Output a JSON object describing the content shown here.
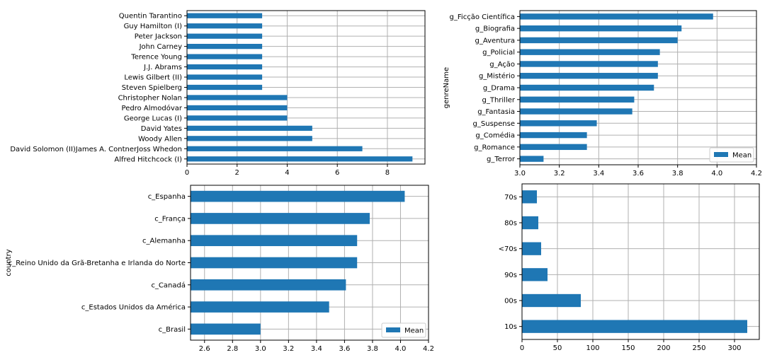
{
  "colors": {
    "bar": "#1f77b4",
    "grid": "#b0b0b0",
    "axis": "#000000",
    "legend_border": "#cccccc"
  },
  "chart_data": [
    {
      "type": "bar",
      "orientation": "horizontal",
      "categories": [
        "Alfred Hitchcock (I)",
        "David Solomon (II)James A. ContnerJoss Whedon",
        "Woody Allen",
        "David Yates",
        "George Lucas (I)",
        "Pedro Almodóvar",
        "Christopher Nolan",
        "Steven Spielberg",
        "Lewis Gilbert (II)",
        "J.J. Abrams",
        "Terence Young",
        "John Carney",
        "Peter Jackson",
        "Guy Hamilton (I)",
        "Quentin Tarantino"
      ],
      "values": [
        9,
        7,
        5,
        5,
        4,
        4,
        4,
        3,
        3,
        3,
        3,
        3,
        3,
        3,
        3
      ],
      "xlim": [
        0,
        9.5
      ],
      "xticks": [
        0,
        2,
        4,
        6,
        8
      ],
      "xtick_labels": [
        "0",
        "2",
        "4",
        "6",
        "8"
      ],
      "ylabel": "",
      "legend": null,
      "grid": true
    },
    {
      "type": "bar",
      "orientation": "horizontal",
      "categories": [
        "g_Terror",
        "g_Romance",
        "g_Comédia",
        "g_Suspense",
        "g_Fantasia",
        "g_Thriller",
        "g_Drama",
        "g_Mistério",
        "g_Ação",
        "g_Policial",
        "g_Aventura",
        "g_Biografia",
        "g_Ficção Científica"
      ],
      "values": [
        3.12,
        3.34,
        3.34,
        3.39,
        3.57,
        3.58,
        3.68,
        3.7,
        3.7,
        3.71,
        3.8,
        3.82,
        3.98
      ],
      "xlim": [
        3.0,
        4.2
      ],
      "xticks": [
        3.0,
        3.2,
        3.4,
        3.6,
        3.8,
        4.0,
        4.2
      ],
      "xtick_labels": [
        "3.0",
        "3.2",
        "3.4",
        "3.6",
        "3.8",
        "4.0",
        "4.2"
      ],
      "ylabel": "genreName",
      "legend": {
        "entries": [
          "Mean"
        ],
        "position": "lower-right"
      },
      "grid": true
    },
    {
      "type": "bar",
      "orientation": "horizontal",
      "categories": [
        "c_Brasil",
        "c_Estados Unidos da América",
        "c_Canadá",
        "c_Reino Unido da Grã-Bretanha e Irlanda do Norte",
        "c_Alemanha",
        "c_França",
        "c_Espanha"
      ],
      "values": [
        3.0,
        3.49,
        3.61,
        3.69,
        3.69,
        3.78,
        4.03
      ],
      "xlim": [
        2.5,
        4.2
      ],
      "xticks": [
        2.6,
        2.8,
        3.0,
        3.2,
        3.4,
        3.6,
        3.8,
        4.0,
        4.2
      ],
      "xtick_labels": [
        "2.6",
        "2.8",
        "3.0",
        "3.2",
        "3.4",
        "3.6",
        "3.8",
        "4.0",
        "4.2"
      ],
      "ylabel": "country",
      "legend": {
        "entries": [
          "Mean"
        ],
        "position": "lower-right"
      },
      "grid": true
    },
    {
      "type": "bar",
      "orientation": "horizontal",
      "categories": [
        "10s",
        "00s",
        "90s",
        "<70s",
        "80s",
        "70s"
      ],
      "values": [
        318,
        83,
        36,
        27,
        23,
        21
      ],
      "xlim": [
        0,
        335
      ],
      "xticks": [
        0,
        50,
        100,
        150,
        200,
        250,
        300
      ],
      "xtick_labels": [
        "0",
        "50",
        "100",
        "150",
        "200",
        "250",
        "300"
      ],
      "ylabel": "",
      "legend": null,
      "grid": true
    }
  ]
}
